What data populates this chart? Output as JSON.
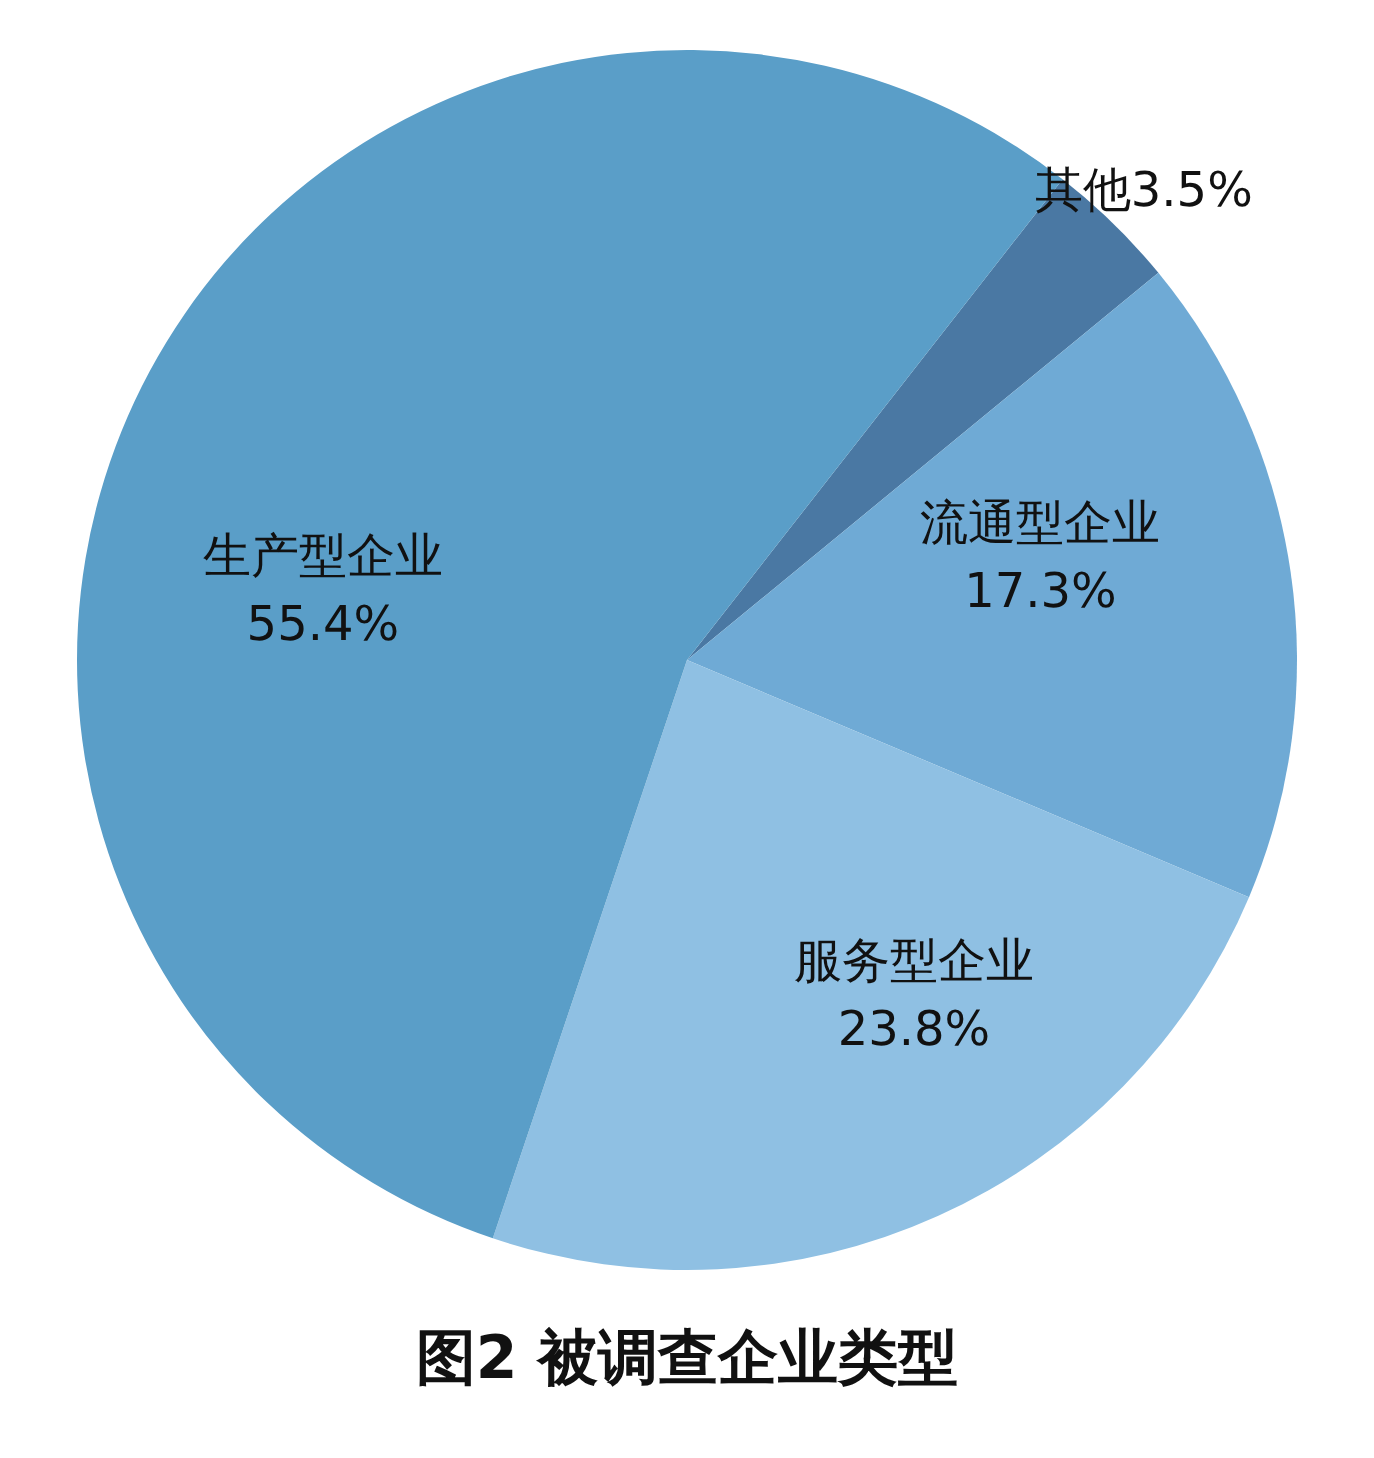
{
  "chart_data": {
    "type": "pie",
    "title": "图2 被调查企业类型",
    "categories": [
      "其他",
      "流通型企业",
      "服务型企业",
      "生产型企业"
    ],
    "values": [
      3.5,
      17.3,
      23.8,
      55.4
    ],
    "value_labels": [
      "3.5%",
      "17.3%",
      "23.8%",
      "55.4%"
    ],
    "colors": [
      "#4a78a3",
      "#6faad5",
      "#8fc0e3",
      "#5a9ec8"
    ],
    "legend": false
  }
}
